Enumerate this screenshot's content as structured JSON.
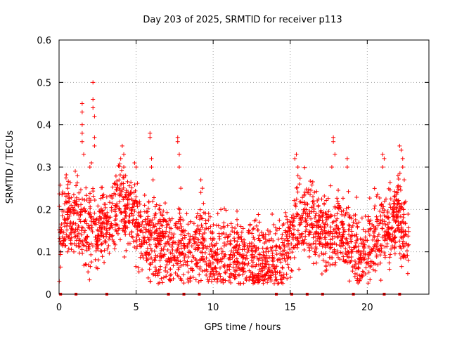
{
  "chart_data": {
    "type": "scatter",
    "title": "Day 203 of 2025, SRMTID for receiver p113",
    "xlabel": "GPS time / hours",
    "ylabel": "SRMTID / TECUs",
    "xlim": [
      0,
      24
    ],
    "ylim": [
      0,
      0.6
    ],
    "xticks": [
      0,
      5,
      10,
      15,
      20
    ],
    "xtick_labels": [
      "0",
      "5",
      "10",
      "15",
      "20"
    ],
    "yticks": [
      0,
      0.1,
      0.2,
      0.3,
      0.4,
      0.5,
      0.6
    ],
    "ytick_labels": [
      "0",
      "0.1",
      "0.2",
      "0.3",
      "0.4",
      "0.5",
      "0.6"
    ],
    "grid": true,
    "marker": "+",
    "series_color": "#ff0000",
    "data_span_hours": [
      0,
      22.7
    ],
    "trend_hours": [
      0,
      0.5,
      1,
      1.5,
      2,
      2.5,
      3,
      3.5,
      4,
      4.5,
      5,
      5.5,
      6,
      6.5,
      7,
      7.5,
      8,
      8.5,
      9,
      9.5,
      10,
      10.5,
      11,
      11.5,
      12,
      12.5,
      13,
      13.5,
      14,
      14.5,
      15,
      15.5,
      16,
      16.5,
      17,
      17.5,
      18,
      18.5,
      19,
      19.5,
      20,
      20.5,
      21,
      21.5,
      22,
      22.5,
      22.7
    ],
    "trend_values": [
      0.15,
      0.18,
      0.17,
      0.16,
      0.15,
      0.14,
      0.17,
      0.18,
      0.22,
      0.2,
      0.17,
      0.14,
      0.12,
      0.12,
      0.11,
      0.1,
      0.11,
      0.1,
      0.12,
      0.11,
      0.09,
      0.09,
      0.09,
      0.09,
      0.09,
      0.09,
      0.08,
      0.08,
      0.08,
      0.08,
      0.12,
      0.18,
      0.18,
      0.16,
      0.15,
      0.15,
      0.16,
      0.15,
      0.12,
      0.09,
      0.12,
      0.14,
      0.15,
      0.16,
      0.19,
      0.13,
      0.1
    ],
    "spread": 0.045,
    "peaks": [
      {
        "x": 1.5,
        "y": 0.45
      },
      {
        "x": 1.5,
        "y": 0.43
      },
      {
        "x": 1.5,
        "y": 0.4
      },
      {
        "x": 1.5,
        "y": 0.38
      },
      {
        "x": 1.5,
        "y": 0.36
      },
      {
        "x": 1.6,
        "y": 0.33
      },
      {
        "x": 2.2,
        "y": 0.5
      },
      {
        "x": 2.2,
        "y": 0.46
      },
      {
        "x": 2.2,
        "y": 0.44
      },
      {
        "x": 2.3,
        "y": 0.42
      },
      {
        "x": 2.3,
        "y": 0.37
      },
      {
        "x": 2.3,
        "y": 0.35
      },
      {
        "x": 2.1,
        "y": 0.31
      },
      {
        "x": 2.0,
        "y": 0.3
      },
      {
        "x": 4.1,
        "y": 0.35
      },
      {
        "x": 4.2,
        "y": 0.33
      },
      {
        "x": 4.0,
        "y": 0.32
      },
      {
        "x": 4.2,
        "y": 0.3
      },
      {
        "x": 4.9,
        "y": 0.31
      },
      {
        "x": 5.0,
        "y": 0.3
      },
      {
        "x": 5.9,
        "y": 0.38
      },
      {
        "x": 5.9,
        "y": 0.37
      },
      {
        "x": 6.0,
        "y": 0.32
      },
      {
        "x": 6.0,
        "y": 0.3
      },
      {
        "x": 6.1,
        "y": 0.27
      },
      {
        "x": 7.7,
        "y": 0.37
      },
      {
        "x": 7.7,
        "y": 0.36
      },
      {
        "x": 7.8,
        "y": 0.33
      },
      {
        "x": 7.8,
        "y": 0.3
      },
      {
        "x": 7.9,
        "y": 0.25
      },
      {
        "x": 9.2,
        "y": 0.27
      },
      {
        "x": 9.3,
        "y": 0.25
      },
      {
        "x": 9.2,
        "y": 0.24
      },
      {
        "x": 10.5,
        "y": 0.2
      },
      {
        "x": 10.3,
        "y": 0.19
      },
      {
        "x": 15.3,
        "y": 0.32
      },
      {
        "x": 15.4,
        "y": 0.33
      },
      {
        "x": 15.5,
        "y": 0.3
      },
      {
        "x": 15.5,
        "y": 0.28
      },
      {
        "x": 15.6,
        "y": 0.26
      },
      {
        "x": 17.8,
        "y": 0.37
      },
      {
        "x": 17.8,
        "y": 0.36
      },
      {
        "x": 17.9,
        "y": 0.33
      },
      {
        "x": 17.7,
        "y": 0.3
      },
      {
        "x": 18.7,
        "y": 0.32
      },
      {
        "x": 18.7,
        "y": 0.3
      },
      {
        "x": 21.0,
        "y": 0.33
      },
      {
        "x": 21.1,
        "y": 0.32
      },
      {
        "x": 21.0,
        "y": 0.3
      },
      {
        "x": 22.1,
        "y": 0.35
      },
      {
        "x": 22.2,
        "y": 0.34
      },
      {
        "x": 22.3,
        "y": 0.32
      },
      {
        "x": 22.3,
        "y": 0.3
      },
      {
        "x": 22.4,
        "y": 0.27
      },
      {
        "x": 13.0,
        "y": 0.17
      },
      {
        "x": 12.3,
        "y": 0.15
      },
      {
        "x": 11.8,
        "y": 0.16
      }
    ],
    "baseline_marks": [
      0.1,
      1.1,
      3.1,
      7.1,
      8.1,
      9.1,
      14.1,
      15.1,
      16.1,
      17.1,
      19.1,
      21.1,
      22.1
    ]
  }
}
